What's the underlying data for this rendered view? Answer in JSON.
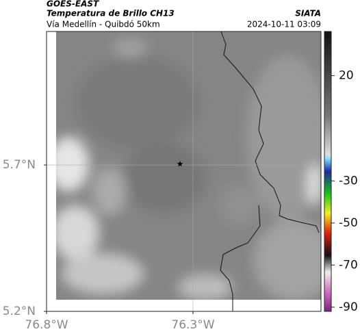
{
  "header": {
    "satellite": "GOES-EAST",
    "title": "Temperatura de Brillo CH13",
    "subtitle": "Vía Medellín - Quibdó 50km",
    "source": "SIATA",
    "timestamp": "2024-10-11 03:09"
  },
  "map": {
    "xlim": [
      -76.8,
      -75.863
    ],
    "ylim": [
      5.2,
      6.156
    ],
    "xticks": [
      {
        "value": -76.8,
        "label": "76.8°W"
      },
      {
        "value": -76.3,
        "label": "76.3°W"
      }
    ],
    "yticks": [
      {
        "value": 5.7,
        "label": "5.7°N"
      },
      {
        "value": 5.2,
        "label": "5.2°N"
      }
    ],
    "grid": true
  },
  "colorbar": {
    "lim": [
      -92,
      41
    ],
    "ticks": [
      20,
      -30,
      -50,
      -70,
      -90
    ]
  }
}
